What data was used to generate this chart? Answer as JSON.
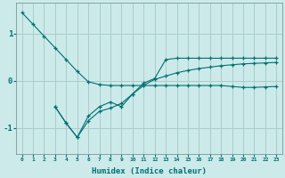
{
  "xlabel": "Humidex (Indice chaleur)",
  "bg_color": "#cceaea",
  "grid_color": "#aacccc",
  "line_color": "#007070",
  "x_ticks": [
    0,
    1,
    2,
    3,
    4,
    5,
    6,
    7,
    8,
    9,
    10,
    11,
    12,
    13,
    14,
    15,
    16,
    17,
    18,
    19,
    20,
    21,
    22,
    23
  ],
  "line1_x": [
    0,
    1,
    2,
    3,
    4,
    5,
    6,
    7,
    8,
    9,
    10,
    11,
    12,
    13,
    14,
    15,
    16,
    17,
    18,
    19,
    20,
    21,
    22,
    23
  ],
  "line1_y": [
    1.45,
    1.2,
    0.95,
    0.7,
    0.45,
    0.2,
    -0.02,
    -0.08,
    -0.1,
    -0.1,
    -0.1,
    -0.1,
    -0.1,
    -0.1,
    -0.1,
    -0.1,
    -0.1,
    -0.1,
    -0.1,
    -0.12,
    -0.14,
    -0.14,
    -0.13,
    -0.12
  ],
  "line2_x": [
    3,
    4,
    5,
    6,
    7,
    8,
    9,
    10,
    11,
    12,
    13,
    14,
    15,
    16,
    17,
    18,
    19,
    20,
    21,
    22,
    23
  ],
  "line2_y": [
    -0.55,
    -0.9,
    -1.2,
    -0.75,
    -0.55,
    -0.45,
    -0.55,
    -0.28,
    -0.05,
    0.05,
    0.45,
    0.48,
    0.48,
    0.48,
    0.48,
    0.48,
    0.48,
    0.48,
    0.48,
    0.48,
    0.48
  ],
  "line3_x": [
    3,
    4,
    5,
    6,
    7,
    8,
    9,
    10,
    11,
    12,
    13,
    14,
    15,
    16,
    17,
    18,
    19,
    20,
    21,
    22,
    23
  ],
  "line3_y": [
    -0.55,
    -0.9,
    -1.2,
    -0.85,
    -0.65,
    -0.58,
    -0.48,
    -0.28,
    -0.1,
    0.03,
    0.1,
    0.17,
    0.22,
    0.26,
    0.29,
    0.32,
    0.34,
    0.36,
    0.37,
    0.38,
    0.39
  ],
  "ylim": [
    -1.55,
    1.65
  ],
  "xlim": [
    -0.5,
    23.5
  ],
  "yticks": [
    -1,
    0,
    1
  ]
}
